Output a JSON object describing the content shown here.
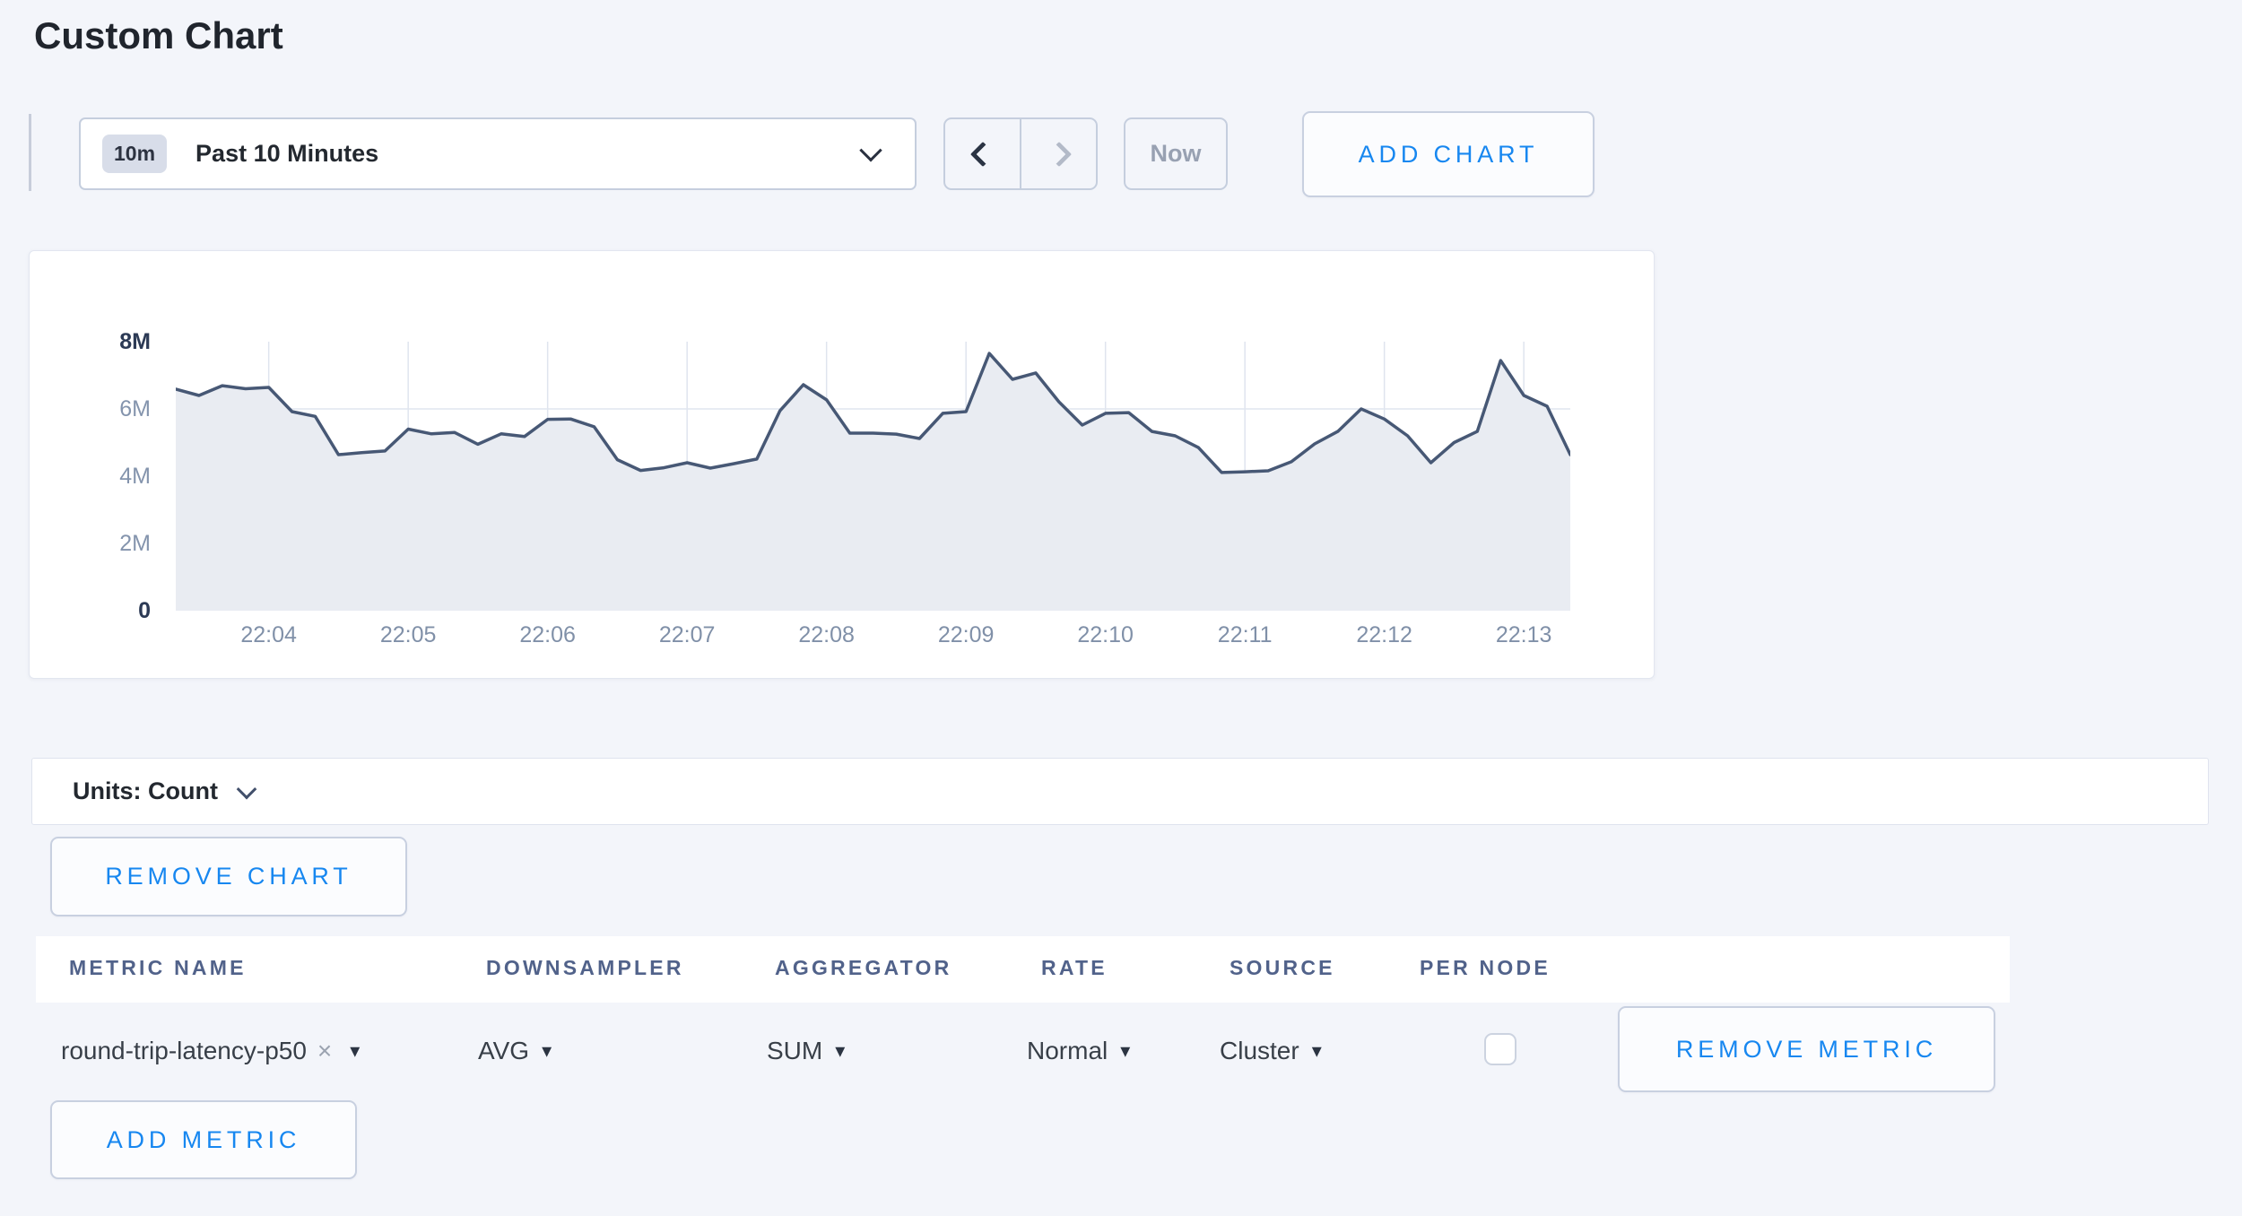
{
  "page": {
    "title": "Custom Chart"
  },
  "colors": {
    "accent_blue": "#1787f0",
    "page_background": "#f3f5fa",
    "chart_line": "#475875",
    "chart_fill": "#e9ecf2",
    "grid_line": "#e1e6ef",
    "disabled_text": "#98a1b2"
  },
  "icons": {
    "caret_down": "▾",
    "close": "×"
  },
  "toolbar": {
    "time_selector": {
      "badge": "10m",
      "value": "Past 10 Minutes"
    },
    "now_button": "Now",
    "add_chart_button": "ADD CHART"
  },
  "units_bar": {
    "label": "Units: Count"
  },
  "remove_chart_button": "REMOVE CHART",
  "metrics_table": {
    "columns": [
      "METRIC NAME",
      "DOWNSAMPLER",
      "AGGREGATOR",
      "RATE",
      "SOURCE",
      "PER NODE"
    ],
    "row": {
      "metric_name": "round-trip-latency-p50",
      "downsampler": "AVG",
      "aggregator": "SUM",
      "rate": "Normal",
      "source": "Cluster",
      "per_node_checked": false
    },
    "remove_metric_button": "REMOVE METRIC",
    "add_metric_button": "ADD METRIC"
  },
  "chart_data": {
    "type": "area",
    "title": "",
    "unit": "Count",
    "legend": "none",
    "grid": true,
    "ylim": [
      0,
      8000000
    ],
    "y_max_millions": 8,
    "y_tick_labels": [
      "0",
      "2M",
      "4M",
      "6M",
      "8M"
    ],
    "y_gridlines_millions": [
      2,
      4,
      6
    ],
    "x_tick_labels": [
      "22:04",
      "22:05",
      "22:06",
      "22:07",
      "22:08",
      "22:09",
      "22:10",
      "22:11",
      "22:12",
      "22:13"
    ],
    "x_tick_indices": [
      4,
      10,
      16,
      22,
      28,
      34,
      40,
      46,
      52,
      58
    ],
    "series": [
      {
        "name": "round-trip-latency-p50",
        "values_millions": [
          6.59,
          6.4,
          6.69,
          6.6,
          6.64,
          5.92,
          5.78,
          4.64,
          4.7,
          4.75,
          5.4,
          5.26,
          5.3,
          4.95,
          5.26,
          5.18,
          5.69,
          5.7,
          5.47,
          4.49,
          4.17,
          4.25,
          4.4,
          4.24,
          4.37,
          4.51,
          5.95,
          6.72,
          6.27,
          5.28,
          5.28,
          5.25,
          5.12,
          5.87,
          5.92,
          7.65,
          6.88,
          7.07,
          6.21,
          5.52,
          5.87,
          5.89,
          5.33,
          5.2,
          4.85,
          4.11,
          4.13,
          4.16,
          4.43,
          4.96,
          5.33,
          6.0,
          5.7,
          5.2,
          4.4,
          5.0,
          5.33,
          7.44,
          6.4,
          6.08,
          4.64
        ]
      }
    ]
  }
}
